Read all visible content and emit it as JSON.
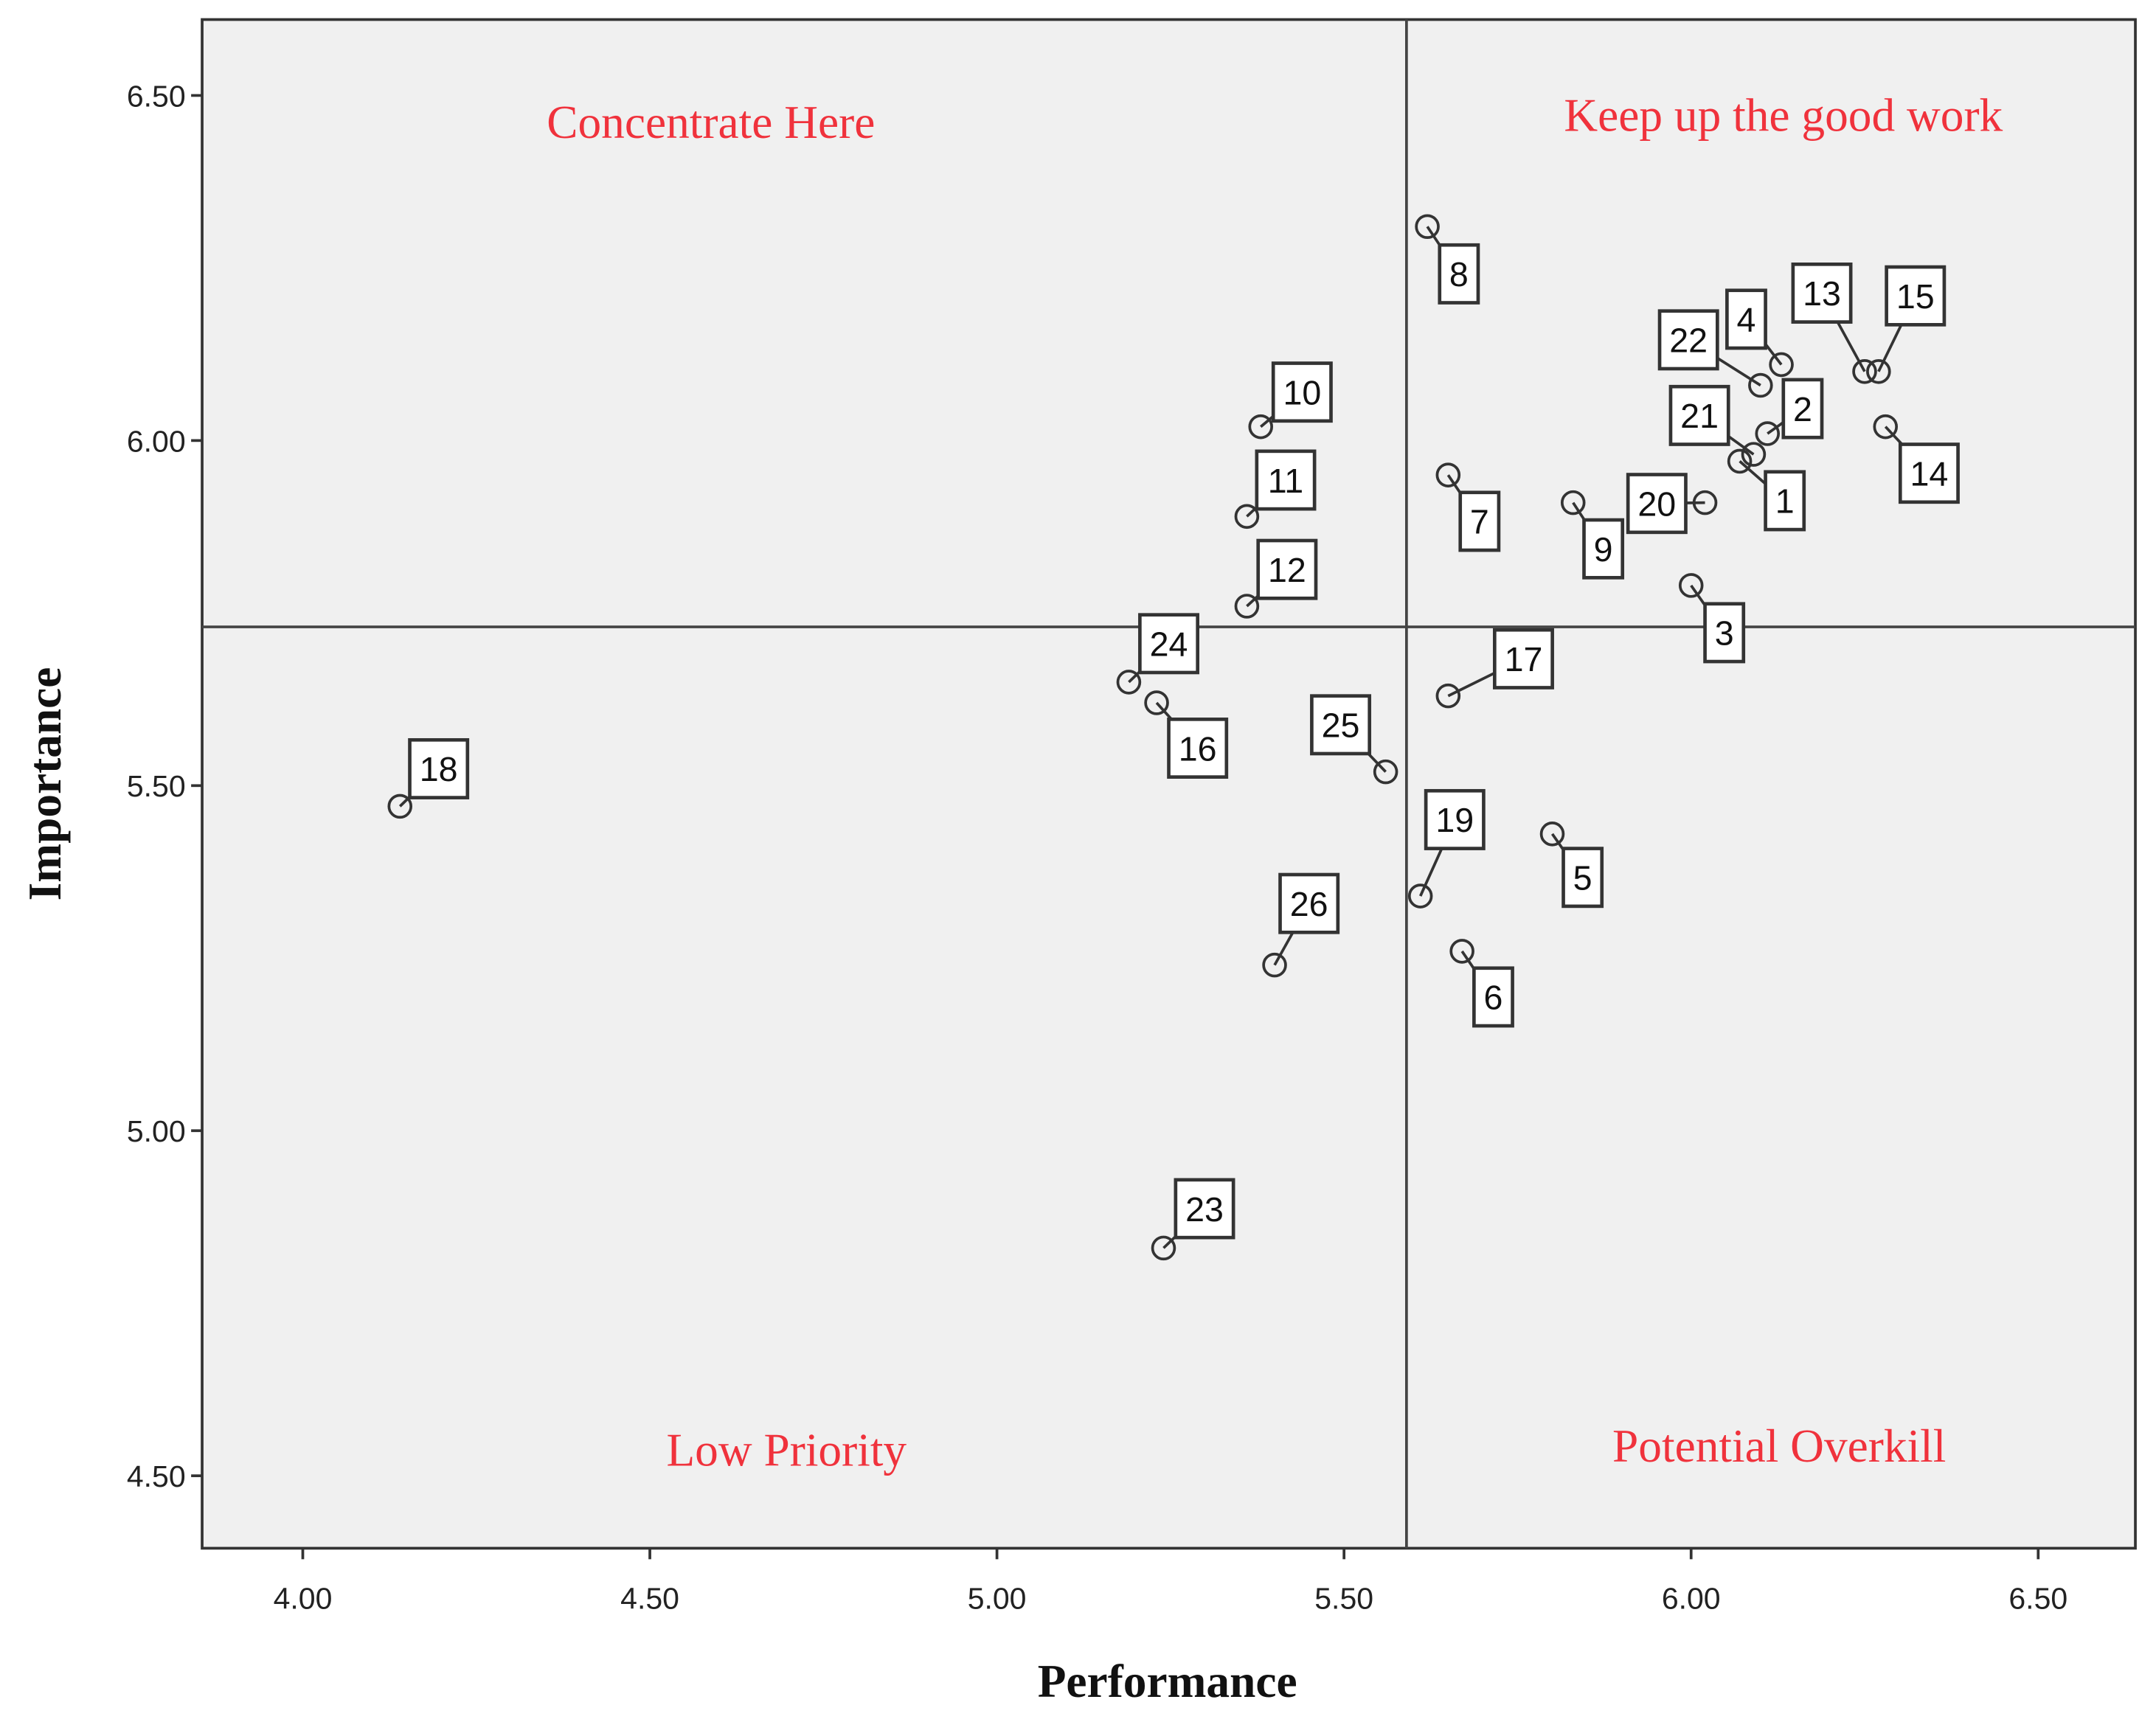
{
  "chart_data": {
    "type": "scatter",
    "xlabel": "Performance",
    "ylabel": "Importance",
    "xlim": [
      3.855,
      6.64
    ],
    "ylim": [
      4.395,
      6.61
    ],
    "x_ticks": [
      "4.00",
      "4.50",
      "5.00",
      "5.50",
      "6.00",
      "6.50"
    ],
    "y_ticks": [
      "4.50",
      "5.00",
      "5.50",
      "6.00",
      "6.50"
    ],
    "grid": false,
    "reference_lines": {
      "x": 5.59,
      "y": 5.73
    },
    "quadrant_labels": {
      "top_left": "Concentrate Here",
      "top_right": "Keep up the good work",
      "bottom_left": "Low Priority",
      "bottom_right": "Potential Overkill"
    },
    "colors": {
      "background": "#f0f0f0",
      "quadrant_text": "#f0323c",
      "marker": "#333333"
    },
    "points": [
      {
        "label": "1",
        "x": 6.07,
        "y": 5.97
      },
      {
        "label": "2",
        "x": 6.11,
        "y": 6.01
      },
      {
        "label": "3",
        "x": 6.0,
        "y": 5.79
      },
      {
        "label": "4",
        "x": 6.13,
        "y": 6.11
      },
      {
        "label": "5",
        "x": 5.8,
        "y": 5.43
      },
      {
        "label": "6",
        "x": 5.67,
        "y": 5.26
      },
      {
        "label": "7",
        "x": 5.65,
        "y": 5.95
      },
      {
        "label": "8",
        "x": 5.62,
        "y": 6.31
      },
      {
        "label": "9",
        "x": 5.83,
        "y": 5.91
      },
      {
        "label": "10",
        "x": 5.38,
        "y": 6.02
      },
      {
        "label": "11",
        "x": 5.36,
        "y": 5.89
      },
      {
        "label": "12",
        "x": 5.36,
        "y": 5.76
      },
      {
        "label": "13",
        "x": 6.25,
        "y": 6.1
      },
      {
        "label": "14",
        "x": 6.28,
        "y": 6.02
      },
      {
        "label": "15",
        "x": 6.27,
        "y": 6.1
      },
      {
        "label": "16",
        "x": 5.23,
        "y": 5.62
      },
      {
        "label": "17",
        "x": 5.65,
        "y": 5.63
      },
      {
        "label": "18",
        "x": 4.14,
        "y": 5.47
      },
      {
        "label": "19",
        "x": 5.61,
        "y": 5.34
      },
      {
        "label": "20",
        "x": 6.02,
        "y": 5.91
      },
      {
        "label": "21",
        "x": 6.09,
        "y": 5.98
      },
      {
        "label": "22",
        "x": 6.1,
        "y": 6.08
      },
      {
        "label": "23",
        "x": 5.24,
        "y": 4.83
      },
      {
        "label": "24",
        "x": 5.19,
        "y": 5.65
      },
      {
        "label": "25",
        "x": 5.56,
        "y": 5.52
      },
      {
        "label": "26",
        "x": 5.4,
        "y": 5.24
      }
    ]
  }
}
